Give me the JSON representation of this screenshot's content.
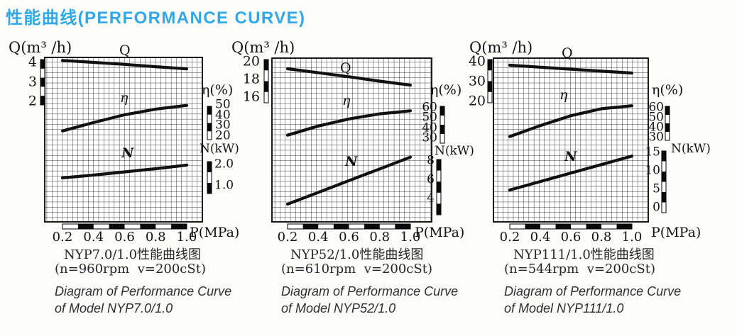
{
  "title": "性能曲线(PERFORMANCE CURVE)",
  "colors": {
    "title_accent": "#31A8E8",
    "ink": "#1b1b1b",
    "grid": "#3a3a3a",
    "curve": "#101010",
    "paper": "#fcfcfa"
  },
  "chart_data": [
    {
      "type": "line",
      "model": "NYP7.0/1.0",
      "x_label": "P(MPa)",
      "x_ticks": [
        "0.2",
        "0.4",
        "0.6",
        "0.8",
        "1.0"
      ],
      "x": [
        0.2,
        0.4,
        0.6,
        0.8,
        1.0
      ],
      "axes": [
        {
          "id": "Q",
          "label": "Q(m³ /h)",
          "ticks": [
            "4",
            "3",
            "2"
          ]
        },
        {
          "id": "eta",
          "label": "η(%)",
          "ticks": [
            "50",
            "40",
            "30",
            "20"
          ]
        },
        {
          "id": "N",
          "label": "N(kW)",
          "ticks": [
            "2.0",
            "1.0"
          ]
        }
      ],
      "series": [
        {
          "name": "Q",
          "unit": "m³/h",
          "values": [
            4.1,
            4.0,
            3.9,
            3.78,
            3.67
          ]
        },
        {
          "name": "η",
          "unit": "%",
          "values": [
            25,
            33,
            40.5,
            46,
            49.5
          ]
        },
        {
          "name": "N",
          "unit": "kW",
          "values": [
            1.37,
            1.5,
            1.65,
            1.8,
            1.97
          ]
        }
      ],
      "caption": {
        "cn": "NYP7.0/1.0性能曲线图",
        "params": "(n=960rpm  v=200cSt)",
        "en1": "Diagram of Performance Curve",
        "en2": "of Model NYP7.0/1.0"
      }
    },
    {
      "type": "line",
      "model": "NYP52/1.0",
      "x_label": "P(MPa)",
      "x_ticks": [
        "0.2",
        "0.4",
        "0.6",
        "0.8",
        "1.0"
      ],
      "x": [
        0.2,
        0.4,
        0.6,
        0.8,
        1.0
      ],
      "axes": [
        {
          "id": "Q",
          "label": "Q(m³ /h)",
          "ticks": [
            "20",
            "18",
            "16"
          ]
        },
        {
          "id": "eta",
          "label": "η(%)",
          "ticks": [
            "60",
            "50",
            "40",
            "30"
          ]
        },
        {
          "id": "N",
          "label": "N(kW)",
          "ticks": [
            "8",
            "6",
            "4"
          ]
        }
      ],
      "series": [
        {
          "name": "Q",
          "unit": "m³/h",
          "values": [
            19.2,
            18.75,
            18.3,
            17.8,
            17.35
          ]
        },
        {
          "name": "η",
          "unit": "%",
          "values": [
            33,
            42,
            49,
            54,
            57
          ]
        },
        {
          "name": "N",
          "unit": "kW",
          "values": [
            3.4,
            4.65,
            5.9,
            7.15,
            8.4
          ]
        }
      ],
      "caption": {
        "cn": "NYP52/1.0性能曲线图",
        "params": "(n=610rpm  v=200cSt)",
        "en1": "Diagram of Performance Curve",
        "en2": "of Model NYP52/1.0"
      }
    },
    {
      "type": "line",
      "model": "NYP111/1.0",
      "x_label": "P(MPa)",
      "x_ticks": [
        "0.2",
        "0.4",
        "0.6",
        "0.8",
        "1.0"
      ],
      "x": [
        0.2,
        0.4,
        0.6,
        0.8,
        1.0
      ],
      "axes": [
        {
          "id": "Q",
          "label": "Q(m³ /h)",
          "ticks": [
            "40",
            "30",
            "20"
          ]
        },
        {
          "id": "eta",
          "label": "η(%)",
          "ticks": [
            "60",
            "50",
            "40",
            "30"
          ]
        },
        {
          "id": "N",
          "label": "N(kW)",
          "ticks": [
            "15",
            "10",
            "5",
            "0"
          ]
        }
      ],
      "series": [
        {
          "name": "Q",
          "unit": "m³/h",
          "values": [
            38.2,
            37.2,
            36.2,
            35.2,
            34.3
          ]
        },
        {
          "name": "η",
          "unit": "%",
          "values": [
            31,
            42,
            52,
            59,
            62
          ]
        },
        {
          "name": "N",
          "unit": "kW",
          "values": [
            4.8,
            7.1,
            9.4,
            11.7,
            14.0
          ]
        }
      ],
      "caption": {
        "cn": "NYP111/1.0性能曲线图",
        "params": "(n=544rpm  v=200cSt)",
        "en1": "Diagram of Performance Curve",
        "en2": "of Model NYP111/1.0"
      }
    }
  ]
}
